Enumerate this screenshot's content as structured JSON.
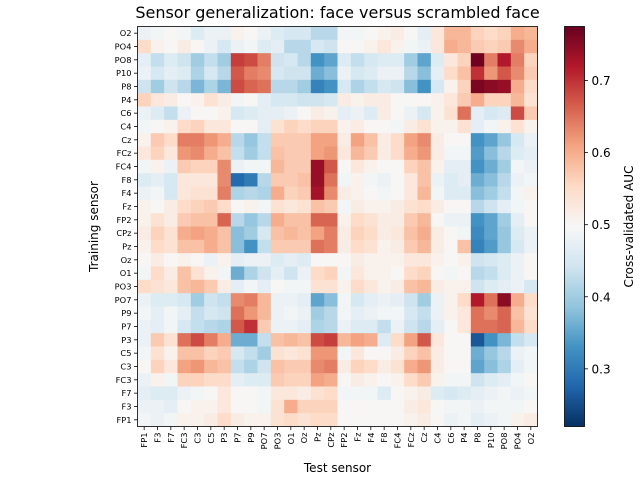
{
  "chart_data": {
    "type": "heatmap",
    "title": "Sensor generalization: face versus scrambled face",
    "xlabel": "Test sensor",
    "ylabel": "Training sensor",
    "colorbar_label": "Cross-validated AUC",
    "colormap": "RdBu_r",
    "vmin": 0.22,
    "vmax": 0.775,
    "colorbar_ticks": [
      0.3,
      0.4,
      0.5,
      0.6,
      0.7
    ],
    "x_categories": [
      "FP1",
      "F3",
      "F7",
      "FC3",
      "C3",
      "C5",
      "P3",
      "P7",
      "P9",
      "PO7",
      "PO3",
      "O1",
      "Oz",
      "Pz",
      "CPz",
      "FP2",
      "Fz",
      "F4",
      "F8",
      "FC4",
      "FCz",
      "Cz",
      "C4",
      "C6",
      "P4",
      "P8",
      "P10",
      "PO8",
      "PO4",
      "O2"
    ],
    "y_categories": [
      "O2",
      "PO4",
      "PO8",
      "P10",
      "P8",
      "P4",
      "C6",
      "C4",
      "Cz",
      "FCz",
      "FC4",
      "F8",
      "F4",
      "Fz",
      "FP2",
      "CPz",
      "Pz",
      "Oz",
      "O1",
      "PO3",
      "PO7",
      "P9",
      "P7",
      "P3",
      "C5",
      "C3",
      "FC3",
      "F7",
      "F3",
      "FP1"
    ],
    "values": [
      [
        0.48,
        0.49,
        0.5,
        0.49,
        0.46,
        0.48,
        0.48,
        0.51,
        0.5,
        0.48,
        0.46,
        0.45,
        0.45,
        0.42,
        0.42,
        0.49,
        0.49,
        0.5,
        0.51,
        0.52,
        0.5,
        0.47,
        0.53,
        0.59,
        0.59,
        0.56,
        0.55,
        0.56,
        0.6,
        0.59
      ],
      [
        0.55,
        0.51,
        0.5,
        0.52,
        0.5,
        0.48,
        0.45,
        0.48,
        0.49,
        0.46,
        0.47,
        0.42,
        0.42,
        0.45,
        0.44,
        0.5,
        0.5,
        0.51,
        0.53,
        0.51,
        0.49,
        0.48,
        0.53,
        0.6,
        0.59,
        0.57,
        0.56,
        0.57,
        0.63,
        0.6
      ],
      [
        0.47,
        0.43,
        0.46,
        0.44,
        0.4,
        0.43,
        0.4,
        0.69,
        0.68,
        0.64,
        0.44,
        0.45,
        0.42,
        0.33,
        0.35,
        0.46,
        0.43,
        0.45,
        0.46,
        0.46,
        0.4,
        0.35,
        0.46,
        0.53,
        0.56,
        0.77,
        0.64,
        0.72,
        0.64,
        0.56
      ],
      [
        0.48,
        0.45,
        0.47,
        0.46,
        0.41,
        0.45,
        0.42,
        0.67,
        0.64,
        0.63,
        0.45,
        0.44,
        0.44,
        0.36,
        0.38,
        0.48,
        0.45,
        0.46,
        0.48,
        0.48,
        0.42,
        0.38,
        0.47,
        0.55,
        0.58,
        0.7,
        0.62,
        0.67,
        0.63,
        0.57
      ],
      [
        0.44,
        0.4,
        0.44,
        0.42,
        0.37,
        0.41,
        0.37,
        0.68,
        0.66,
        0.65,
        0.42,
        0.42,
        0.4,
        0.31,
        0.33,
        0.45,
        0.41,
        0.43,
        0.45,
        0.44,
        0.38,
        0.33,
        0.45,
        0.51,
        0.56,
        0.76,
        0.75,
        0.74,
        0.6,
        0.55
      ],
      [
        0.56,
        0.53,
        0.52,
        0.5,
        0.51,
        0.54,
        0.52,
        0.49,
        0.5,
        0.47,
        0.45,
        0.45,
        0.44,
        0.44,
        0.45,
        0.52,
        0.51,
        0.52,
        0.52,
        0.5,
        0.5,
        0.5,
        0.51,
        0.53,
        0.57,
        0.6,
        0.56,
        0.56,
        0.59,
        0.54
      ],
      [
        0.48,
        0.46,
        0.43,
        0.48,
        0.5,
        0.5,
        0.51,
        0.45,
        0.46,
        0.47,
        0.47,
        0.48,
        0.5,
        0.52,
        0.51,
        0.47,
        0.48,
        0.46,
        0.52,
        0.5,
        0.48,
        0.45,
        0.51,
        0.54,
        0.65,
        0.47,
        0.45,
        0.46,
        0.68,
        0.57
      ],
      [
        0.49,
        0.5,
        0.51,
        0.55,
        0.56,
        0.53,
        0.53,
        0.5,
        0.5,
        0.47,
        0.54,
        0.56,
        0.55,
        0.56,
        0.56,
        0.51,
        0.52,
        0.5,
        0.5,
        0.49,
        0.52,
        0.54,
        0.51,
        0.51,
        0.54,
        0.47,
        0.49,
        0.51,
        0.54,
        0.51
      ],
      [
        0.51,
        0.57,
        0.55,
        0.64,
        0.64,
        0.62,
        0.6,
        0.42,
        0.39,
        0.43,
        0.57,
        0.57,
        0.57,
        0.61,
        0.61,
        0.52,
        0.61,
        0.58,
        0.52,
        0.55,
        0.61,
        0.63,
        0.52,
        0.5,
        0.5,
        0.33,
        0.35,
        0.39,
        0.45,
        0.48
      ],
      [
        0.53,
        0.56,
        0.53,
        0.62,
        0.63,
        0.6,
        0.58,
        0.43,
        0.4,
        0.43,
        0.58,
        0.57,
        0.57,
        0.61,
        0.62,
        0.53,
        0.59,
        0.57,
        0.52,
        0.55,
        0.6,
        0.62,
        0.52,
        0.49,
        0.49,
        0.34,
        0.38,
        0.42,
        0.46,
        0.47
      ],
      [
        0.49,
        0.51,
        0.48,
        0.57,
        0.56,
        0.56,
        0.63,
        0.48,
        0.49,
        0.49,
        0.59,
        0.57,
        0.57,
        0.74,
        0.67,
        0.5,
        0.53,
        0.51,
        0.5,
        0.5,
        0.56,
        0.58,
        0.51,
        0.47,
        0.47,
        0.33,
        0.36,
        0.4,
        0.49,
        0.48
      ],
      [
        0.46,
        0.47,
        0.45,
        0.53,
        0.53,
        0.53,
        0.63,
        0.28,
        0.3,
        0.42,
        0.57,
        0.57,
        0.58,
        0.74,
        0.65,
        0.49,
        0.51,
        0.49,
        0.48,
        0.5,
        0.53,
        0.58,
        0.48,
        0.46,
        0.47,
        0.36,
        0.38,
        0.42,
        0.48,
        0.49
      ],
      [
        0.48,
        0.49,
        0.45,
        0.53,
        0.54,
        0.54,
        0.64,
        0.41,
        0.42,
        0.41,
        0.6,
        0.56,
        0.57,
        0.73,
        0.63,
        0.52,
        0.51,
        0.5,
        0.49,
        0.5,
        0.53,
        0.59,
        0.49,
        0.46,
        0.46,
        0.38,
        0.4,
        0.43,
        0.49,
        0.51
      ],
      [
        0.51,
        0.5,
        0.52,
        0.55,
        0.56,
        0.57,
        0.55,
        0.5,
        0.51,
        0.49,
        0.54,
        0.53,
        0.54,
        0.58,
        0.57,
        0.49,
        0.52,
        0.51,
        0.51,
        0.52,
        0.54,
        0.55,
        0.52,
        0.5,
        0.5,
        0.42,
        0.44,
        0.47,
        0.49,
        0.5
      ],
      [
        0.51,
        0.54,
        0.52,
        0.57,
        0.58,
        0.58,
        0.66,
        0.42,
        0.39,
        0.42,
        0.6,
        0.58,
        0.58,
        0.66,
        0.66,
        0.51,
        0.55,
        0.54,
        0.52,
        0.52,
        0.57,
        0.59,
        0.5,
        0.48,
        0.48,
        0.33,
        0.35,
        0.4,
        0.47,
        0.5
      ],
      [
        0.52,
        0.56,
        0.54,
        0.6,
        0.61,
        0.6,
        0.58,
        0.38,
        0.4,
        0.45,
        0.58,
        0.59,
        0.58,
        0.61,
        0.64,
        0.52,
        0.56,
        0.55,
        0.52,
        0.53,
        0.58,
        0.6,
        0.52,
        0.5,
        0.49,
        0.32,
        0.35,
        0.39,
        0.46,
        0.48
      ],
      [
        0.51,
        0.55,
        0.54,
        0.58,
        0.58,
        0.6,
        0.58,
        0.38,
        0.33,
        0.43,
        0.57,
        0.57,
        0.57,
        0.65,
        0.64,
        0.52,
        0.55,
        0.54,
        0.51,
        0.52,
        0.57,
        0.59,
        0.52,
        0.5,
        0.58,
        0.31,
        0.34,
        0.39,
        0.45,
        0.48
      ],
      [
        0.5,
        0.52,
        0.5,
        0.51,
        0.5,
        0.48,
        0.51,
        0.47,
        0.48,
        0.48,
        0.46,
        0.47,
        0.46,
        0.5,
        0.5,
        0.5,
        0.52,
        0.51,
        0.51,
        0.51,
        0.53,
        0.53,
        0.51,
        0.5,
        0.51,
        0.44,
        0.45,
        0.46,
        0.48,
        0.5
      ],
      [
        0.49,
        0.55,
        0.52,
        0.58,
        0.54,
        0.51,
        0.49,
        0.36,
        0.41,
        0.44,
        0.47,
        0.44,
        0.48,
        0.55,
        0.56,
        0.49,
        0.53,
        0.51,
        0.51,
        0.5,
        0.55,
        0.56,
        0.5,
        0.49,
        0.5,
        0.42,
        0.43,
        0.46,
        0.48,
        0.5
      ],
      [
        0.55,
        0.54,
        0.53,
        0.58,
        0.59,
        0.57,
        0.52,
        0.47,
        0.49,
        0.47,
        0.5,
        0.49,
        0.49,
        0.54,
        0.54,
        0.51,
        0.55,
        0.53,
        0.51,
        0.52,
        0.58,
        0.59,
        0.52,
        0.51,
        0.51,
        0.44,
        0.46,
        0.47,
        0.48,
        0.45
      ],
      [
        0.48,
        0.46,
        0.46,
        0.45,
        0.4,
        0.44,
        0.43,
        0.63,
        0.64,
        0.59,
        0.48,
        0.48,
        0.47,
        0.35,
        0.38,
        0.49,
        0.45,
        0.47,
        0.48,
        0.47,
        0.44,
        0.4,
        0.48,
        0.51,
        0.55,
        0.72,
        0.65,
        0.75,
        0.6,
        0.55
      ],
      [
        0.49,
        0.47,
        0.49,
        0.47,
        0.43,
        0.45,
        0.44,
        0.65,
        0.62,
        0.59,
        0.48,
        0.49,
        0.48,
        0.4,
        0.42,
        0.49,
        0.47,
        0.48,
        0.49,
        0.49,
        0.45,
        0.43,
        0.48,
        0.51,
        0.53,
        0.65,
        0.63,
        0.66,
        0.58,
        0.54
      ],
      [
        0.48,
        0.47,
        0.49,
        0.45,
        0.43,
        0.42,
        0.41,
        0.67,
        0.7,
        0.57,
        0.48,
        0.48,
        0.47,
        0.41,
        0.42,
        0.48,
        0.46,
        0.46,
        0.43,
        0.48,
        0.44,
        0.42,
        0.47,
        0.5,
        0.53,
        0.65,
        0.65,
        0.66,
        0.59,
        0.55
      ],
      [
        0.48,
        0.57,
        0.54,
        0.65,
        0.68,
        0.64,
        0.6,
        0.36,
        0.36,
        0.43,
        0.58,
        0.59,
        0.58,
        0.68,
        0.69,
        0.59,
        0.61,
        0.6,
        0.46,
        0.55,
        0.61,
        0.67,
        0.53,
        0.5,
        0.5,
        0.26,
        0.33,
        0.37,
        0.43,
        0.45
      ],
      [
        0.49,
        0.54,
        0.51,
        0.58,
        0.58,
        0.56,
        0.57,
        0.45,
        0.43,
        0.4,
        0.54,
        0.53,
        0.54,
        0.62,
        0.62,
        0.49,
        0.53,
        0.5,
        0.5,
        0.52,
        0.56,
        0.58,
        0.52,
        0.5,
        0.5,
        0.36,
        0.39,
        0.42,
        0.48,
        0.49
      ],
      [
        0.5,
        0.56,
        0.53,
        0.61,
        0.62,
        0.59,
        0.58,
        0.43,
        0.41,
        0.44,
        0.58,
        0.57,
        0.57,
        0.63,
        0.64,
        0.52,
        0.56,
        0.55,
        0.52,
        0.54,
        0.6,
        0.62,
        0.52,
        0.5,
        0.5,
        0.35,
        0.38,
        0.41,
        0.47,
        0.49
      ],
      [
        0.48,
        0.51,
        0.49,
        0.56,
        0.56,
        0.55,
        0.55,
        0.47,
        0.46,
        0.46,
        0.57,
        0.56,
        0.56,
        0.61,
        0.6,
        0.5,
        0.52,
        0.51,
        0.5,
        0.51,
        0.55,
        0.57,
        0.51,
        0.49,
        0.49,
        0.44,
        0.46,
        0.47,
        0.49,
        0.5
      ],
      [
        0.47,
        0.46,
        0.46,
        0.48,
        0.49,
        0.5,
        0.53,
        0.5,
        0.5,
        0.49,
        0.53,
        0.53,
        0.52,
        0.54,
        0.55,
        0.49,
        0.49,
        0.49,
        0.46,
        0.5,
        0.51,
        0.52,
        0.46,
        0.45,
        0.46,
        0.47,
        0.48,
        0.49,
        0.48,
        0.49
      ],
      [
        0.48,
        0.48,
        0.47,
        0.5,
        0.51,
        0.51,
        0.53,
        0.5,
        0.5,
        0.49,
        0.54,
        0.6,
        0.56,
        0.56,
        0.56,
        0.5,
        0.5,
        0.5,
        0.5,
        0.5,
        0.52,
        0.53,
        0.5,
        0.49,
        0.49,
        0.48,
        0.49,
        0.49,
        0.49,
        0.5
      ],
      [
        0.49,
        0.48,
        0.49,
        0.51,
        0.51,
        0.52,
        0.55,
        0.52,
        0.51,
        0.51,
        0.54,
        0.55,
        0.54,
        0.55,
        0.55,
        0.5,
        0.5,
        0.5,
        0.5,
        0.5,
        0.51,
        0.52,
        0.5,
        0.48,
        0.49,
        0.47,
        0.48,
        0.49,
        0.51,
        0.52
      ]
    ]
  }
}
